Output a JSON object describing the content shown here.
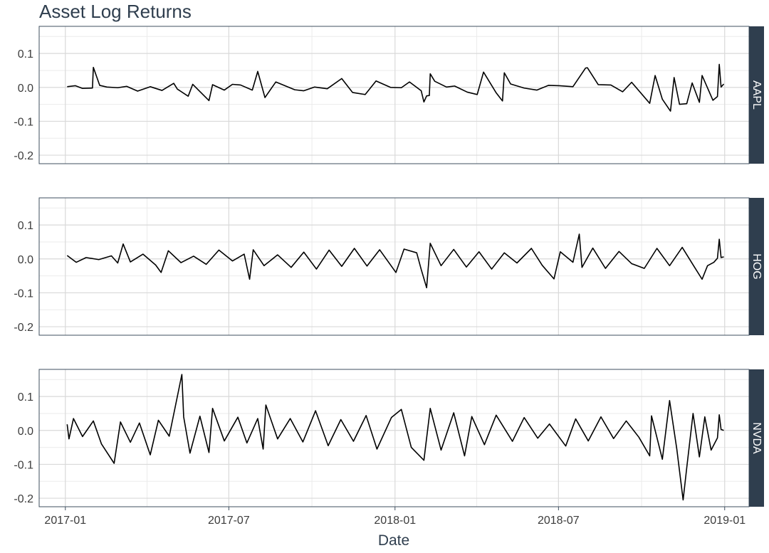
{
  "chart_data": {
    "type": "line",
    "title": "Asset Log Returns",
    "xlabel": "Date",
    "ylabel": "",
    "x_range": [
      "2016-12-03",
      "2019-01-28"
    ],
    "x_ticks": [
      {
        "date": "2017-01-01",
        "label": "2017-01"
      },
      {
        "date": "2017-07-01",
        "label": "2017-07"
      },
      {
        "date": "2018-01-01",
        "label": "2018-01"
      },
      {
        "date": "2018-07-01",
        "label": "2018-07"
      },
      {
        "date": "2019-01-01",
        "label": "2019-01"
      }
    ],
    "ylim": [
      -0.225,
      0.18
    ],
    "y_ticks": [
      0.1,
      0.0,
      -0.1,
      -0.2
    ],
    "y_tick_labels": [
      "0.1",
      "0.0",
      "-0.1",
      "-0.2"
    ],
    "grid": true,
    "facet_strip_position": "right",
    "facet_strip_color": "#2f3e4e",
    "line_color": "#000000",
    "panels": [
      {
        "name": "AAPL",
        "points": [
          [
            "2017-01-03",
            0.002
          ],
          [
            "2017-01-12",
            0.005
          ],
          [
            "2017-01-20",
            -0.003
          ],
          [
            "2017-01-31",
            -0.002
          ],
          [
            "2017-02-01",
            0.059
          ],
          [
            "2017-02-08",
            0.006
          ],
          [
            "2017-02-16",
            0.001
          ],
          [
            "2017-02-28",
            -0.001
          ],
          [
            "2017-03-10",
            0.003
          ],
          [
            "2017-03-22",
            -0.011
          ],
          [
            "2017-04-05",
            0.002
          ],
          [
            "2017-04-18",
            -0.009
          ],
          [
            "2017-05-01",
            0.012
          ],
          [
            "2017-05-05",
            -0.005
          ],
          [
            "2017-05-17",
            -0.026
          ],
          [
            "2017-05-22",
            0.009
          ],
          [
            "2017-06-09",
            -0.039
          ],
          [
            "2017-06-13",
            0.008
          ],
          [
            "2017-06-26",
            -0.008
          ],
          [
            "2017-07-05",
            0.009
          ],
          [
            "2017-07-14",
            0.007
          ],
          [
            "2017-07-27",
            -0.008
          ],
          [
            "2017-08-02",
            0.047
          ],
          [
            "2017-08-10",
            -0.03
          ],
          [
            "2017-08-22",
            0.016
          ],
          [
            "2017-09-12",
            -0.007
          ],
          [
            "2017-09-22",
            -0.01
          ],
          [
            "2017-10-04",
            0.001
          ],
          [
            "2017-10-18",
            -0.004
          ],
          [
            "2017-11-03",
            0.026
          ],
          [
            "2017-11-15",
            -0.015
          ],
          [
            "2017-11-29",
            -0.021
          ],
          [
            "2017-12-11",
            0.019
          ],
          [
            "2017-12-27",
            0.0
          ],
          [
            "2018-01-08",
            -0.001
          ],
          [
            "2018-01-17",
            0.016
          ],
          [
            "2018-01-30",
            -0.01
          ],
          [
            "2018-02-02",
            -0.043
          ],
          [
            "2018-02-05",
            -0.025
          ],
          [
            "2018-02-08",
            -0.024
          ],
          [
            "2018-02-09",
            0.04
          ],
          [
            "2018-02-14",
            0.018
          ],
          [
            "2018-02-27",
            0.001
          ],
          [
            "2018-03-08",
            0.004
          ],
          [
            "2018-03-22",
            -0.014
          ],
          [
            "2018-04-02",
            -0.021
          ],
          [
            "2018-04-09",
            0.045
          ],
          [
            "2018-04-23",
            -0.016
          ],
          [
            "2018-04-30",
            -0.04
          ],
          [
            "2018-05-02",
            0.043
          ],
          [
            "2018-05-09",
            0.01
          ],
          [
            "2018-05-24",
            -0.002
          ],
          [
            "2018-06-07",
            -0.008
          ],
          [
            "2018-06-20",
            0.006
          ],
          [
            "2018-07-02",
            0.005
          ],
          [
            "2018-07-17",
            0.002
          ],
          [
            "2018-07-31",
            0.057
          ],
          [
            "2018-08-02",
            0.058
          ],
          [
            "2018-08-14",
            0.008
          ],
          [
            "2018-08-28",
            0.007
          ],
          [
            "2018-09-10",
            -0.013
          ],
          [
            "2018-09-20",
            0.015
          ],
          [
            "2018-10-10",
            -0.047
          ],
          [
            "2018-10-16",
            0.035
          ],
          [
            "2018-10-24",
            -0.035
          ],
          [
            "2018-11-02",
            -0.07
          ],
          [
            "2018-11-06",
            0.029
          ],
          [
            "2018-11-12",
            -0.05
          ],
          [
            "2018-11-20",
            -0.048
          ],
          [
            "2018-11-26",
            0.013
          ],
          [
            "2018-12-04",
            -0.044
          ],
          [
            "2018-12-07",
            0.035
          ],
          [
            "2018-12-19",
            -0.038
          ],
          [
            "2018-12-24",
            -0.027
          ],
          [
            "2018-12-26",
            0.068
          ],
          [
            "2018-12-28",
            0.001
          ],
          [
            "2018-12-31",
            0.01
          ]
        ]
      },
      {
        "name": "HOG",
        "points": [
          [
            "2017-01-03",
            0.01
          ],
          [
            "2017-01-13",
            -0.01
          ],
          [
            "2017-01-24",
            0.004
          ],
          [
            "2017-02-07",
            -0.002
          ],
          [
            "2017-02-21",
            0.009
          ],
          [
            "2017-02-28",
            -0.012
          ],
          [
            "2017-03-06",
            0.044
          ],
          [
            "2017-03-14",
            -0.009
          ],
          [
            "2017-03-28",
            0.014
          ],
          [
            "2017-04-11",
            -0.018
          ],
          [
            "2017-04-17",
            -0.04
          ],
          [
            "2017-04-25",
            0.024
          ],
          [
            "2017-05-09",
            -0.011
          ],
          [
            "2017-05-23",
            0.008
          ],
          [
            "2017-06-06",
            -0.016
          ],
          [
            "2017-06-20",
            0.026
          ],
          [
            "2017-07-05",
            -0.006
          ],
          [
            "2017-07-18",
            0.014
          ],
          [
            "2017-07-24",
            -0.06
          ],
          [
            "2017-07-28",
            0.027
          ],
          [
            "2017-08-09",
            -0.02
          ],
          [
            "2017-08-24",
            0.012
          ],
          [
            "2017-09-08",
            -0.025
          ],
          [
            "2017-09-22",
            0.02
          ],
          [
            "2017-10-06",
            -0.03
          ],
          [
            "2017-10-20",
            0.026
          ],
          [
            "2017-11-03",
            -0.022
          ],
          [
            "2017-11-17",
            0.031
          ],
          [
            "2017-12-01",
            -0.021
          ],
          [
            "2017-12-15",
            0.027
          ],
          [
            "2018-01-02",
            -0.04
          ],
          [
            "2018-01-11",
            0.029
          ],
          [
            "2018-01-25",
            0.018
          ],
          [
            "2018-01-30",
            -0.031
          ],
          [
            "2018-02-05",
            -0.085
          ],
          [
            "2018-02-09",
            0.046
          ],
          [
            "2018-02-21",
            -0.02
          ],
          [
            "2018-03-07",
            0.028
          ],
          [
            "2018-03-21",
            -0.024
          ],
          [
            "2018-04-04",
            0.021
          ],
          [
            "2018-04-18",
            -0.03
          ],
          [
            "2018-05-02",
            0.018
          ],
          [
            "2018-05-16",
            -0.012
          ],
          [
            "2018-06-01",
            0.031
          ],
          [
            "2018-06-13",
            -0.019
          ],
          [
            "2018-06-26",
            -0.059
          ],
          [
            "2018-07-03",
            0.021
          ],
          [
            "2018-07-17",
            -0.01
          ],
          [
            "2018-07-24",
            0.073
          ],
          [
            "2018-07-27",
            -0.025
          ],
          [
            "2018-08-08",
            0.032
          ],
          [
            "2018-08-22",
            -0.028
          ],
          [
            "2018-09-06",
            0.022
          ],
          [
            "2018-09-20",
            -0.014
          ],
          [
            "2018-10-04",
            -0.028
          ],
          [
            "2018-10-18",
            0.031
          ],
          [
            "2018-11-01",
            -0.02
          ],
          [
            "2018-11-15",
            0.034
          ],
          [
            "2018-11-29",
            -0.026
          ],
          [
            "2018-12-07",
            -0.06
          ],
          [
            "2018-12-13",
            -0.02
          ],
          [
            "2018-12-20",
            -0.01
          ],
          [
            "2018-12-24",
            0.002
          ],
          [
            "2018-12-26",
            0.058
          ],
          [
            "2018-12-28",
            0.004
          ],
          [
            "2018-12-31",
            0.006
          ]
        ]
      },
      {
        "name": "NVDA",
        "points": [
          [
            "2017-01-03",
            0.018
          ],
          [
            "2017-01-05",
            -0.025
          ],
          [
            "2017-01-10",
            0.035
          ],
          [
            "2017-01-20",
            -0.018
          ],
          [
            "2017-02-01",
            0.028
          ],
          [
            "2017-02-10",
            -0.04
          ],
          [
            "2017-02-24",
            -0.097
          ],
          [
            "2017-03-03",
            0.025
          ],
          [
            "2017-03-14",
            -0.035
          ],
          [
            "2017-03-24",
            0.022
          ],
          [
            "2017-04-05",
            -0.072
          ],
          [
            "2017-04-14",
            0.03
          ],
          [
            "2017-04-26",
            -0.017
          ],
          [
            "2017-05-10",
            0.165
          ],
          [
            "2017-05-12",
            0.04
          ],
          [
            "2017-05-19",
            -0.067
          ],
          [
            "2017-05-30",
            0.042
          ],
          [
            "2017-06-09",
            -0.065
          ],
          [
            "2017-06-13",
            0.065
          ],
          [
            "2017-06-26",
            -0.031
          ],
          [
            "2017-07-11",
            0.039
          ],
          [
            "2017-07-21",
            -0.037
          ],
          [
            "2017-08-02",
            0.035
          ],
          [
            "2017-08-08",
            -0.055
          ],
          [
            "2017-08-11",
            0.075
          ],
          [
            "2017-08-24",
            -0.025
          ],
          [
            "2017-09-07",
            0.035
          ],
          [
            "2017-09-21",
            -0.034
          ],
          [
            "2017-10-05",
            0.058
          ],
          [
            "2017-10-19",
            -0.045
          ],
          [
            "2017-11-02",
            0.032
          ],
          [
            "2017-11-16",
            -0.032
          ],
          [
            "2017-11-30",
            0.044
          ],
          [
            "2017-12-12",
            -0.055
          ],
          [
            "2017-12-28",
            0.038
          ],
          [
            "2018-01-08",
            0.062
          ],
          [
            "2018-01-19",
            -0.05
          ],
          [
            "2018-02-02",
            -0.088
          ],
          [
            "2018-02-09",
            0.065
          ],
          [
            "2018-02-21",
            -0.058
          ],
          [
            "2018-03-07",
            0.052
          ],
          [
            "2018-03-19",
            -0.075
          ],
          [
            "2018-03-27",
            0.041
          ],
          [
            "2018-04-10",
            -0.042
          ],
          [
            "2018-04-23",
            0.045
          ],
          [
            "2018-05-11",
            -0.032
          ],
          [
            "2018-05-24",
            0.038
          ],
          [
            "2018-06-08",
            -0.023
          ],
          [
            "2018-06-21",
            0.019
          ],
          [
            "2018-07-09",
            -0.046
          ],
          [
            "2018-07-20",
            0.034
          ],
          [
            "2018-08-03",
            -0.031
          ],
          [
            "2018-08-17",
            0.04
          ],
          [
            "2018-08-31",
            -0.024
          ],
          [
            "2018-09-14",
            0.028
          ],
          [
            "2018-09-28",
            -0.02
          ],
          [
            "2018-10-10",
            -0.075
          ],
          [
            "2018-10-12",
            0.043
          ],
          [
            "2018-10-24",
            -0.085
          ],
          [
            "2018-11-01",
            0.088
          ],
          [
            "2018-11-09",
            -0.055
          ],
          [
            "2018-11-16",
            -0.205
          ],
          [
            "2018-11-20",
            -0.11
          ],
          [
            "2018-11-27",
            0.05
          ],
          [
            "2018-12-04",
            -0.078
          ],
          [
            "2018-12-10",
            0.04
          ],
          [
            "2018-12-17",
            -0.058
          ],
          [
            "2018-12-24",
            -0.022
          ],
          [
            "2018-12-26",
            0.046
          ],
          [
            "2018-12-28",
            0.003
          ],
          [
            "2018-12-31",
            0.0
          ]
        ]
      }
    ]
  }
}
